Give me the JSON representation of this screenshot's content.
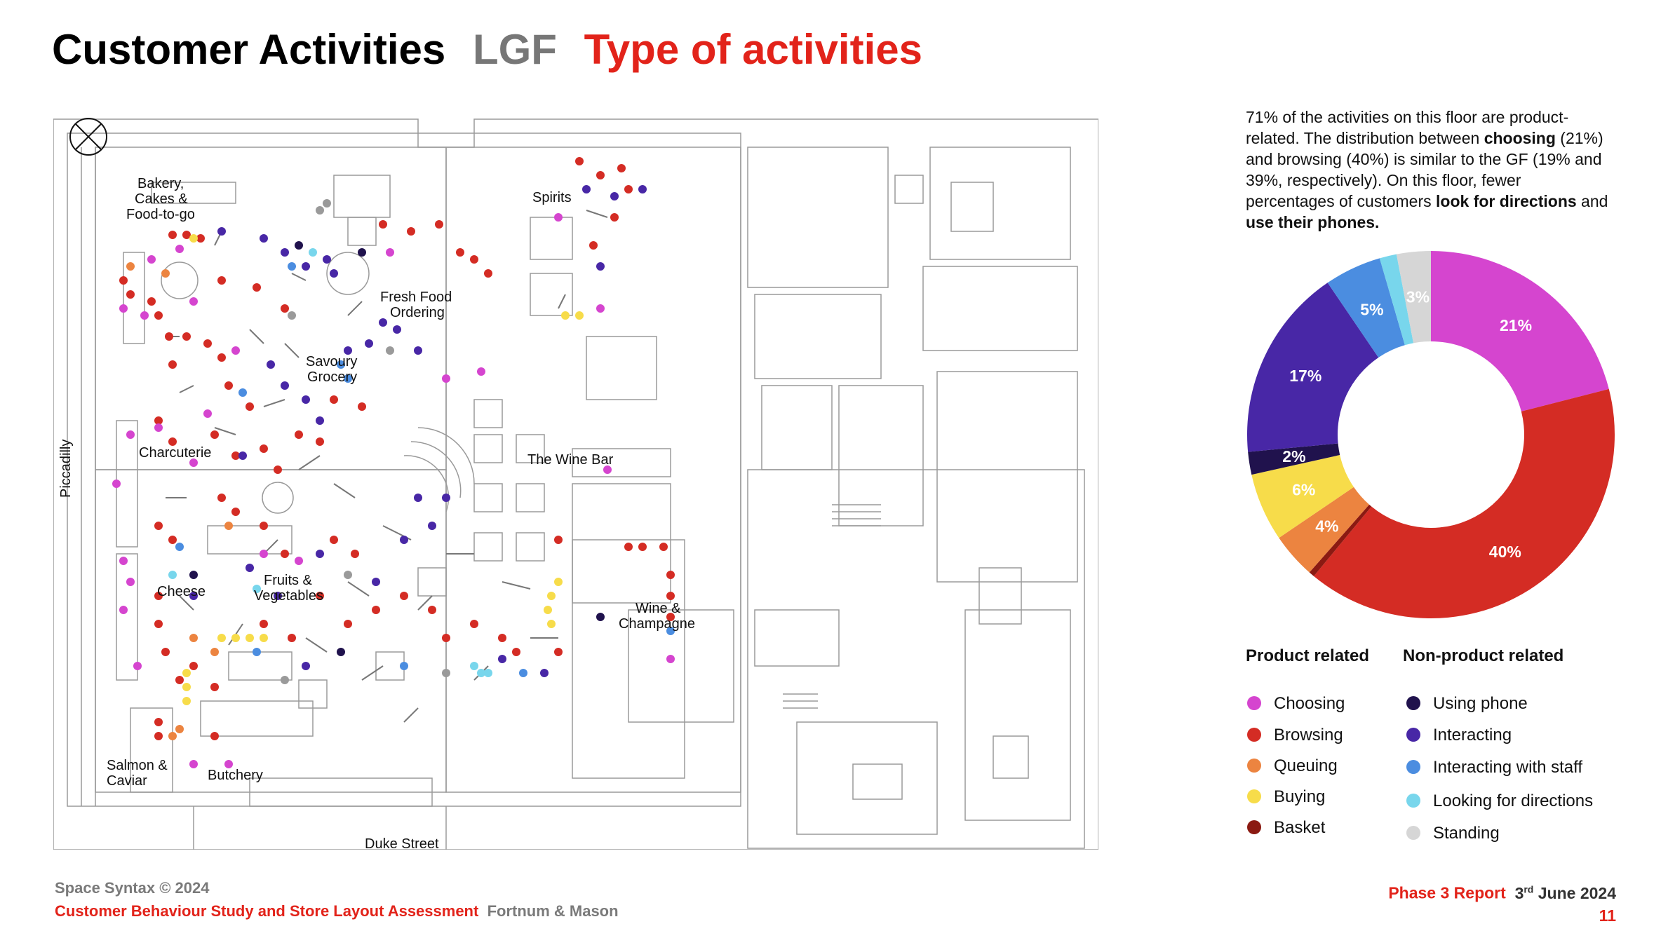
{
  "header": {
    "title_main": "Customer Activities",
    "title_floor": "LGF",
    "title_sub": "Type of activities"
  },
  "summary": {
    "p1": "71% of the activities on this floor are product-related. The distribution between ",
    "b1": "choosing",
    "p2": " (21%) and browsing (40%) is similar to the GF (19% and 39%, respectively). On this floor, fewer percentages of customers ",
    "b2": "look for directions",
    "p3": " and ",
    "b3": "use their phones."
  },
  "map": {
    "labels": {
      "bakery1": "Bakery,",
      "bakery2": "Cakes &",
      "bakery3": "Food-to-go",
      "spirits": "Spirits",
      "fresh1": "Fresh Food",
      "fresh2": "Ordering",
      "savoury1": "Savoury",
      "savoury2": "Grocery",
      "piccadilly": "Piccadilly",
      "charcuterie": "Charcuterie",
      "winebar": "The Wine Bar",
      "cheese": "Cheese",
      "fruits1": "Fruits &",
      "fruits2": "Vegetables",
      "wine1": "Wine &",
      "wine2": "Champagne",
      "salmon1": "Salmon &",
      "salmon2": "Caviar",
      "butchery": "Butchery",
      "duke": "Duke Street"
    }
  },
  "chart_data": {
    "type": "pie",
    "title": "Type of activities",
    "categories": [
      "Choosing",
      "Browsing",
      "Basket",
      "Queuing",
      "Buying",
      "Using phone",
      "Interacting",
      "Interacting with staff",
      "Looking for directions",
      "Standing"
    ],
    "values": [
      21,
      40,
      0.5,
      4,
      6,
      2,
      17,
      5,
      1.5,
      3
    ],
    "labels": [
      "21%",
      "40%",
      "",
      "4%",
      "6%",
      "2%",
      "17%",
      "5%",
      "",
      "3%"
    ],
    "colors": [
      "#d545cf",
      "#d42c24",
      "#8b1a12",
      "#ec8440",
      "#f7dc4a",
      "#20124d",
      "#4827a6",
      "#4b8de0",
      "#78d6ec",
      "#d6d6d6"
    ],
    "hole": "donut"
  },
  "legend": {
    "product_head": "Product related",
    "nonproduct_head": "Non-product related",
    "product": [
      {
        "label": "Choosing",
        "color": "#d545cf"
      },
      {
        "label": "Browsing",
        "color": "#d42c24"
      },
      {
        "label": "Queuing",
        "color": "#ec8440"
      },
      {
        "label": "Buying",
        "color": "#f7dc4a"
      },
      {
        "label": "Basket",
        "color": "#8b1a12"
      }
    ],
    "nonproduct": [
      {
        "label": "Using phone",
        "color": "#20124d"
      },
      {
        "label": "Interacting",
        "color": "#4827a6"
      },
      {
        "label": "Interacting with staff",
        "color": "#4b8de0"
      },
      {
        "label": "Looking for directions",
        "color": "#78d6ec"
      },
      {
        "label": "Standing",
        "color": "#d6d6d6"
      }
    ]
  },
  "footer": {
    "copyright": "Space Syntax © 2024",
    "study": "Customer Behaviour Study and Store Layout Assessment",
    "client": "Fortnum & Mason",
    "report": "Phase 3 Report",
    "date_day": "3",
    "date_sup": "rd",
    "date_rest": " June 2024",
    "page": "11"
  }
}
